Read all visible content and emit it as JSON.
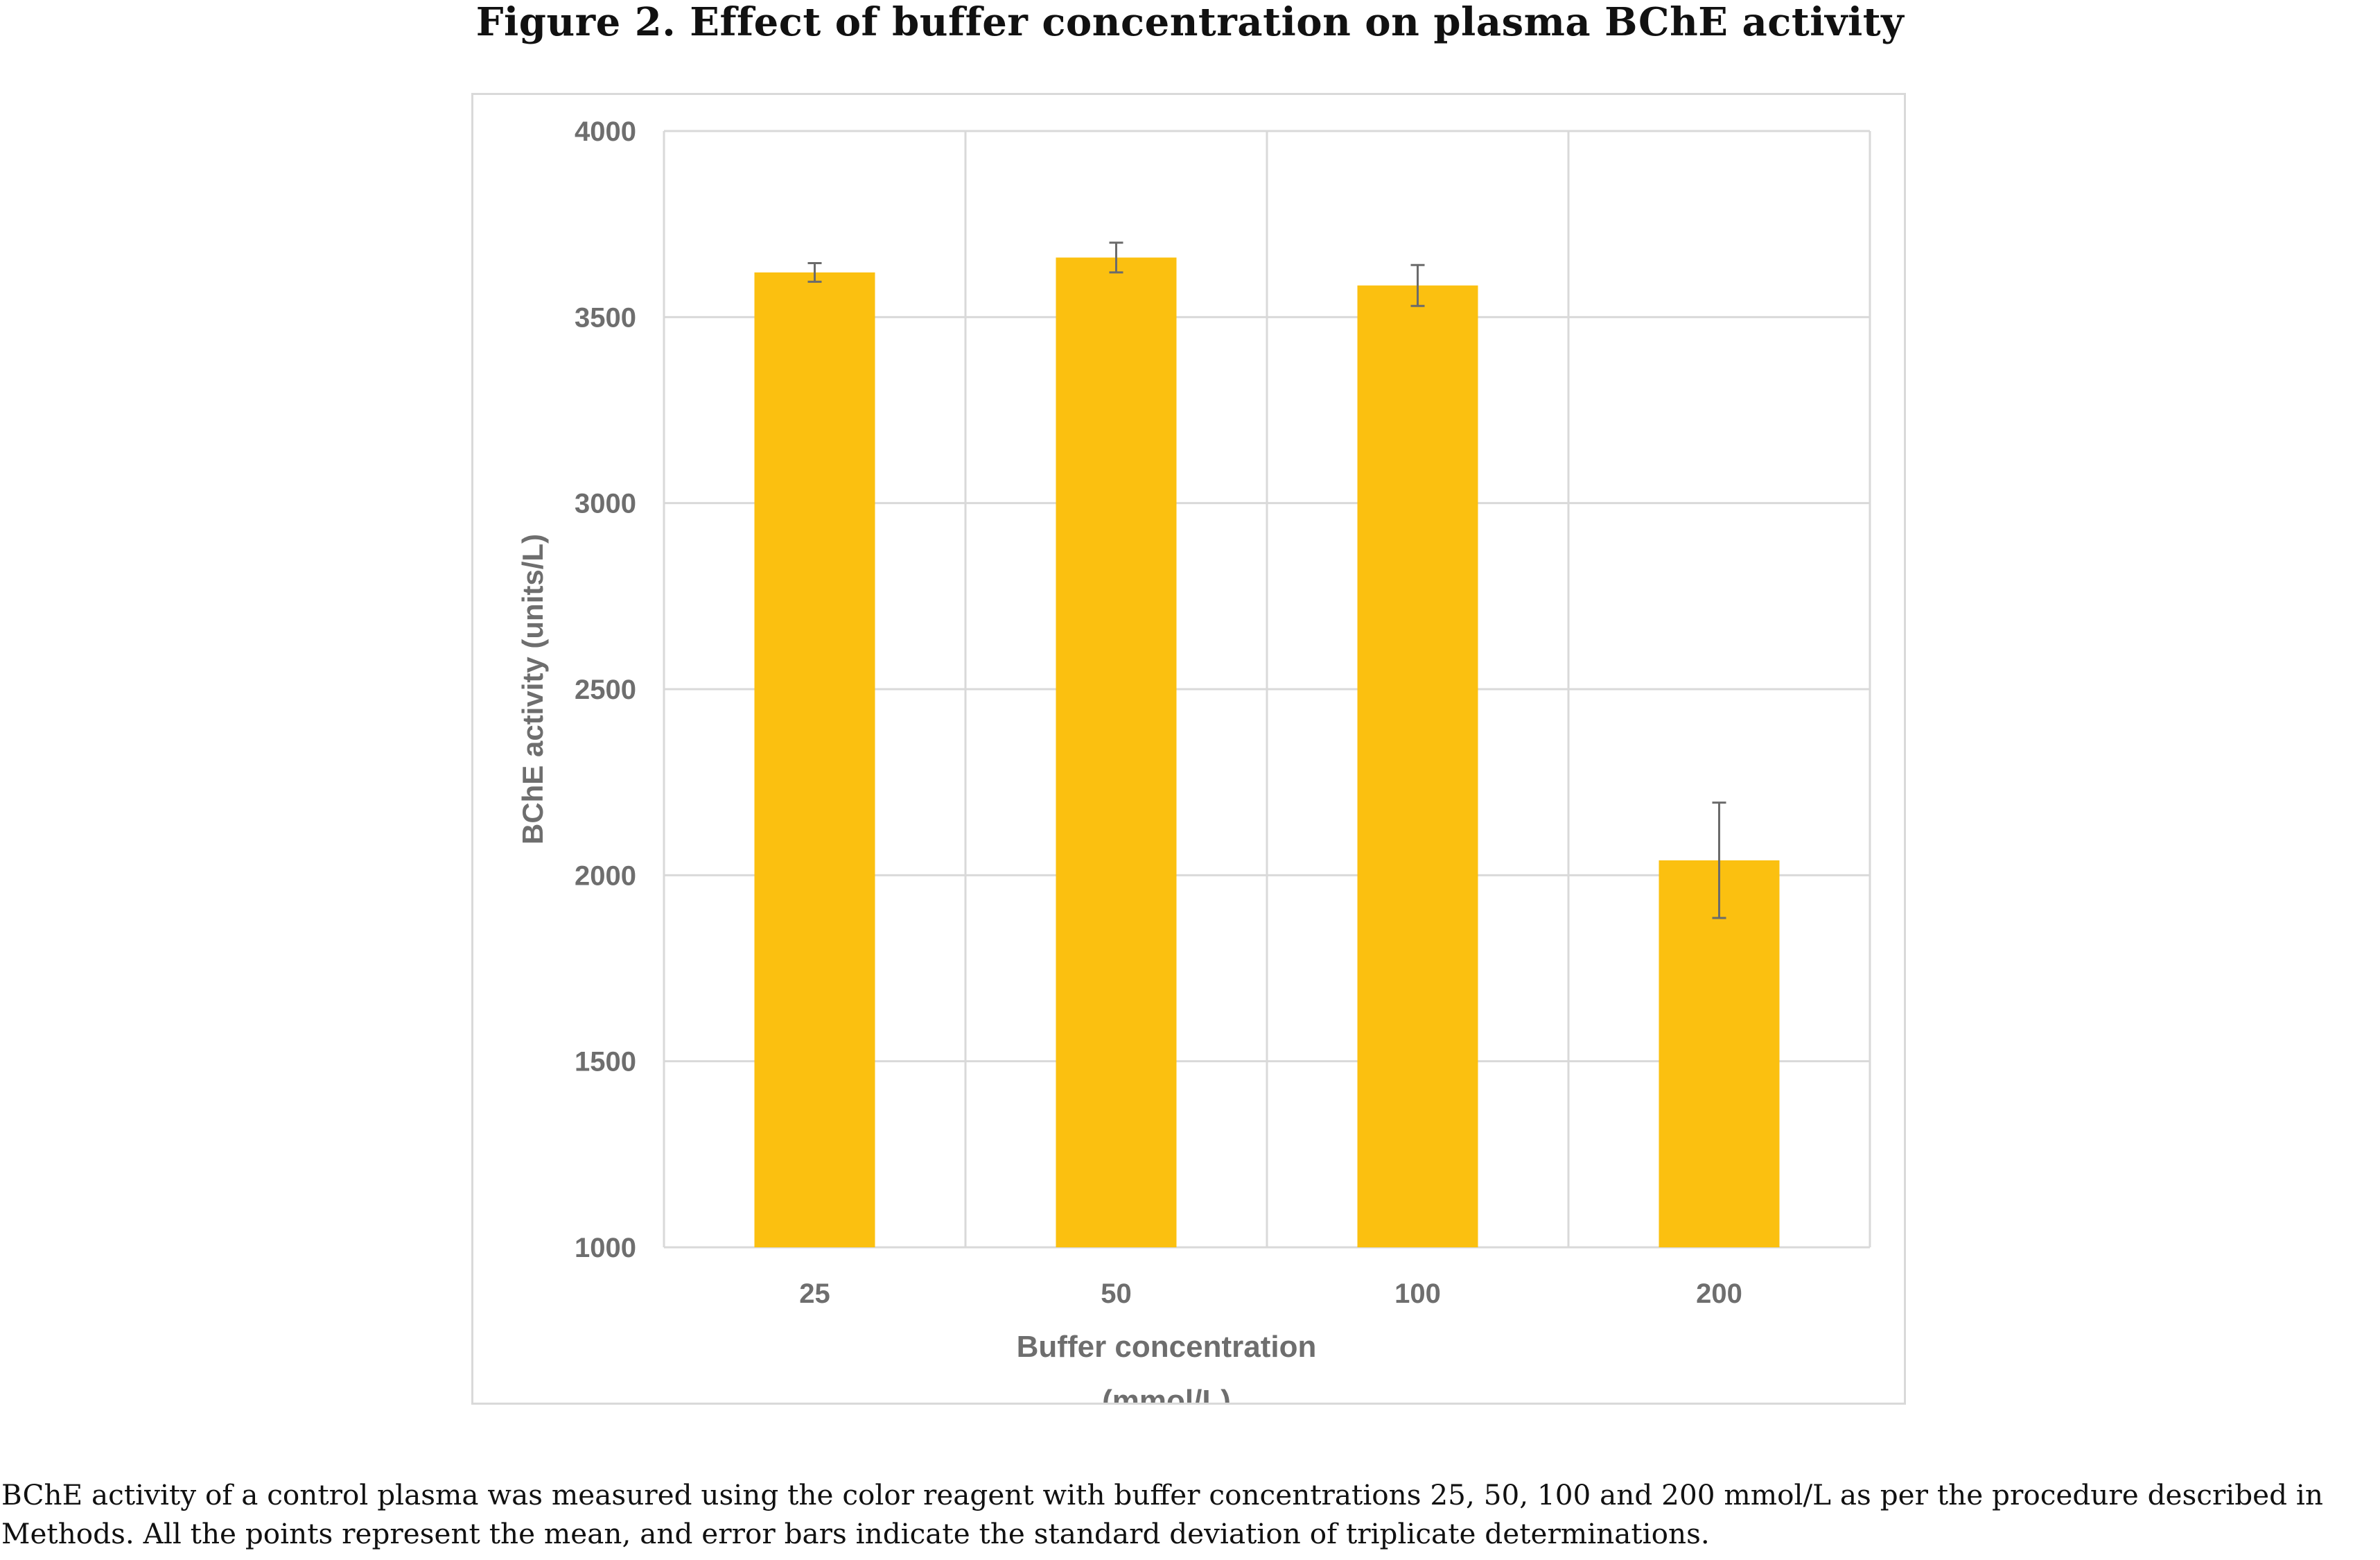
{
  "figure": {
    "title": "Figure 2. Effect of buffer concentration on plasma BChE activity",
    "caption_line1": "BChE activity of a control plasma was measured using the color reagent with buffer concentrations 25, 50, 100 and 200 mmol/L as per the procedure described in",
    "caption_line2": "Methods. All the points represent the mean, and error bars indicate the standard deviation of triplicate determinations."
  },
  "chart_data": {
    "type": "bar",
    "categories": [
      "25",
      "50",
      "100",
      "200"
    ],
    "values": [
      3620,
      3660,
      3585,
      2040
    ],
    "error": [
      25,
      40,
      55,
      155
    ],
    "xlabel_line1": "Buffer concentration",
    "xlabel_line2": "(mmol/L)",
    "ylabel": "BChE activity (units/L)",
    "ylim": [
      1000,
      4000
    ],
    "yticks": [
      "1000",
      "1500",
      "2000",
      "2500",
      "3000",
      "3500",
      "4000"
    ],
    "grid": "both",
    "colors": {
      "bar": "#FBC010",
      "error_bar": "#6b6b6b",
      "grid": "#d9d9d9",
      "tick_label": "#6e6e6e",
      "axis_title": "#6e6e6e"
    }
  }
}
